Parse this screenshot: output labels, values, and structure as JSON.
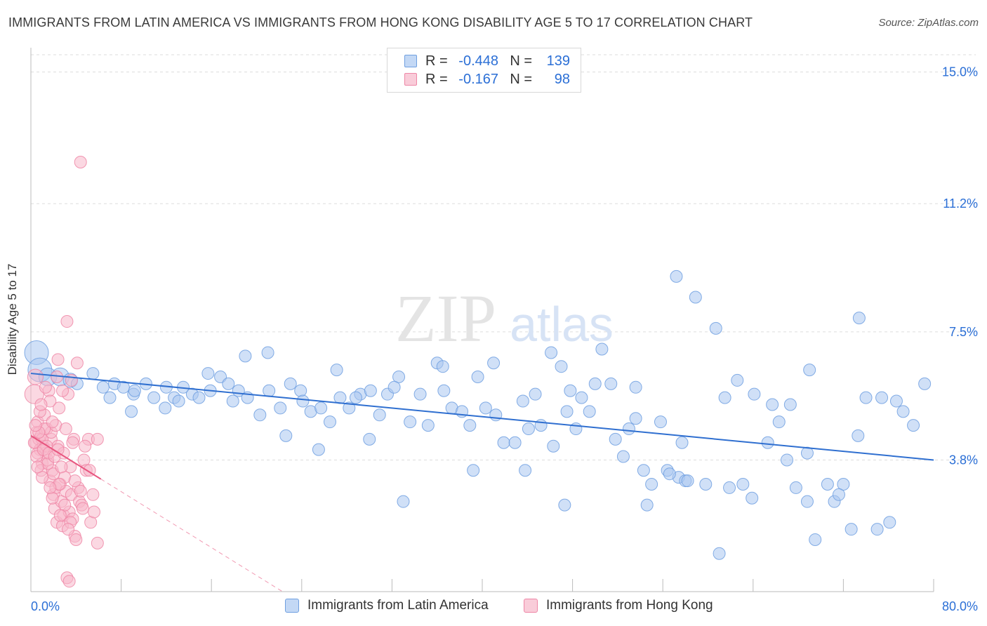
{
  "header": {
    "title": "IMMIGRANTS FROM LATIN AMERICA VS IMMIGRANTS FROM HONG KONG DISABILITY AGE 5 TO 17 CORRELATION CHART",
    "source": "Source: ZipAtlas.com"
  },
  "legend": {
    "rows": [
      {
        "r_label": "R =",
        "r_value": "-0.448",
        "n_label": "N =",
        "n_value": "139"
      },
      {
        "r_label": "R =",
        "r_value": "-0.167",
        "n_label": "N =",
        "n_value": "98"
      }
    ]
  },
  "watermark": {
    "zip": "ZIP",
    "atlas": "atlas"
  },
  "colors": {
    "blue_fill": "#a9c6f0",
    "blue_stroke": "#6f9fe0",
    "blue_line": "#2f6fd0",
    "pink_fill": "#f7b8ca",
    "pink_stroke": "#ee86a6",
    "pink_line": "#e8557f",
    "tick_label": "#2b6fd6",
    "grid": "#dddddd"
  },
  "chart_data": {
    "type": "scatter",
    "title": "IMMIGRANTS FROM LATIN AMERICA VS IMMIGRANTS FROM HONG KONG DISABILITY AGE 5 TO 17 CORRELATION CHART",
    "xlabel": "",
    "ylabel": "Disability Age 5 to 17",
    "xlim": [
      0,
      80
    ],
    "ylim": [
      0,
      15.5
    ],
    "x_tick_labels": [
      "0.0%",
      "80.0%"
    ],
    "y_ticks": [
      3.8,
      7.5,
      11.2,
      15.0
    ],
    "y_tick_labels": [
      "3.8%",
      "7.5%",
      "11.2%",
      "15.0%"
    ],
    "grid": true,
    "legend_position": "top-center",
    "series": [
      {
        "name": "Immigrants from Latin America",
        "r": -0.448,
        "n": 139,
        "trend": {
          "x": [
            0,
            80
          ],
          "y": [
            6.3,
            3.8
          ]
        },
        "points": [
          [
            0.5,
            6.9,
            2
          ],
          [
            0.8,
            6.4,
            2
          ],
          [
            1.5,
            6.2,
            1.5
          ],
          [
            2.6,
            6.2,
            1.5
          ],
          [
            3.5,
            6.1,
            1.2
          ],
          [
            4.1,
            6.0,
            1
          ],
          [
            5.5,
            6.3,
            1
          ],
          [
            6.4,
            5.9,
            1
          ],
          [
            7.4,
            6.0,
            1
          ],
          [
            8.2,
            5.9,
            1
          ],
          [
            9.1,
            5.7,
            1
          ],
          [
            10.2,
            6.0,
            1
          ],
          [
            10.9,
            5.6,
            1
          ],
          [
            12.0,
            5.9,
            1
          ],
          [
            12.7,
            5.6,
            1
          ],
          [
            13.5,
            5.9,
            1
          ],
          [
            14.3,
            5.7,
            1
          ],
          [
            14.9,
            5.6,
            1
          ],
          [
            15.9,
            5.8,
            1
          ],
          [
            16.8,
            6.2,
            1
          ],
          [
            17.5,
            6.0,
            1
          ],
          [
            18.4,
            5.8,
            1
          ],
          [
            19.2,
            5.6,
            1
          ],
          [
            20.3,
            5.1,
            1
          ],
          [
            21.1,
            5.8,
            1
          ],
          [
            22.1,
            5.3,
            1
          ],
          [
            23.0,
            6.0,
            1
          ],
          [
            23.9,
            5.8,
            1
          ],
          [
            24.8,
            5.2,
            1
          ],
          [
            25.7,
            5.3,
            1
          ],
          [
            26.5,
            4.9,
            1
          ],
          [
            27.4,
            5.6,
            1
          ],
          [
            28.2,
            5.3,
            1
          ],
          [
            29.2,
            5.7,
            1
          ],
          [
            30.1,
            5.8,
            1
          ],
          [
            30.9,
            5.1,
            1
          ],
          [
            31.6,
            5.7,
            1
          ],
          [
            32.6,
            6.2,
            1
          ],
          [
            33.6,
            4.9,
            1
          ],
          [
            34.5,
            5.7,
            1
          ],
          [
            35.2,
            4.8,
            1
          ],
          [
            36.0,
            6.6,
            1
          ],
          [
            36.6,
            5.8,
            1
          ],
          [
            37.3,
            5.3,
            1
          ],
          [
            38.2,
            5.2,
            1
          ],
          [
            38.9,
            4.8,
            1
          ],
          [
            39.6,
            6.2,
            1
          ],
          [
            40.3,
            5.3,
            1
          ],
          [
            41.2,
            5.1,
            1
          ],
          [
            41.9,
            4.3,
            1
          ],
          [
            42.9,
            4.3,
            1
          ],
          [
            43.6,
            5.5,
            1
          ],
          [
            44.1,
            4.7,
            1
          ],
          [
            44.7,
            5.7,
            1
          ],
          [
            45.2,
            4.8,
            1
          ],
          [
            46.3,
            4.2,
            1
          ],
          [
            47.0,
            6.5,
            1
          ],
          [
            47.5,
            5.2,
            1
          ],
          [
            48.3,
            4.7,
            1
          ],
          [
            48.8,
            5.6,
            1
          ],
          [
            49.5,
            5.2,
            1
          ],
          [
            50.0,
            6.0,
            1
          ],
          [
            50.6,
            7.0,
            1
          ],
          [
            51.4,
            6.0,
            1
          ],
          [
            51.8,
            4.4,
            1
          ],
          [
            52.5,
            3.9,
            1
          ],
          [
            53.0,
            4.7,
            1
          ],
          [
            53.6,
            5.0,
            1
          ],
          [
            54.3,
            3.5,
            1
          ],
          [
            55.0,
            3.1,
            1
          ],
          [
            55.8,
            4.9,
            1
          ],
          [
            56.4,
            3.5,
            1
          ],
          [
            57.2,
            9.1,
            1
          ],
          [
            57.4,
            3.3,
            1
          ],
          [
            58.0,
            3.2,
            1
          ],
          [
            58.2,
            3.2,
            1
          ],
          [
            58.9,
            8.5,
            1
          ],
          [
            59.8,
            3.1,
            1
          ],
          [
            60.7,
            7.6,
            1
          ],
          [
            61.5,
            5.6,
            1
          ],
          [
            61.9,
            3.0,
            1
          ],
          [
            62.6,
            6.1,
            1
          ],
          [
            63.1,
            3.1,
            1
          ],
          [
            64.1,
            5.7,
            1
          ],
          [
            65.3,
            4.3,
            1
          ],
          [
            65.7,
            5.4,
            1
          ],
          [
            66.3,
            4.9,
            1
          ],
          [
            67.3,
            5.4,
            1
          ],
          [
            67.8,
            3.0,
            1
          ],
          [
            68.8,
            4.0,
            1
          ],
          [
            68.8,
            2.6,
            1
          ],
          [
            69.5,
            1.5,
            1
          ],
          [
            70.6,
            3.1,
            1
          ],
          [
            71.2,
            2.6,
            1
          ],
          [
            72.0,
            3.1,
            1
          ],
          [
            72.7,
            1.8,
            1
          ],
          [
            73.3,
            4.5,
            1
          ],
          [
            73.4,
            7.9,
            1
          ],
          [
            74.0,
            5.6,
            1
          ],
          [
            75.0,
            1.8,
            1
          ],
          [
            75.4,
            5.6,
            1
          ],
          [
            76.1,
            2.0,
            1
          ],
          [
            76.7,
            5.5,
            1
          ],
          [
            77.3,
            5.2,
            1
          ],
          [
            78.2,
            4.8,
            1
          ],
          [
            79.2,
            6.0,
            1
          ],
          [
            33.0,
            2.6,
            1
          ],
          [
            39.2,
            3.5,
            1
          ],
          [
            47.8,
            5.8,
            1
          ],
          [
            54.6,
            2.5,
            1
          ],
          [
            61.0,
            1.1,
            1
          ],
          [
            47.3,
            2.5,
            1
          ],
          [
            43.8,
            3.5,
            1
          ],
          [
            56.6,
            3.4,
            1
          ],
          [
            28.8,
            5.6,
            1
          ],
          [
            57.7,
            4.3,
            1
          ],
          [
            63.9,
            2.7,
            1
          ],
          [
            67.0,
            3.8,
            1
          ],
          [
            69.0,
            6.4,
            1
          ],
          [
            71.6,
            2.8,
            1
          ],
          [
            27.1,
            6.4,
            1
          ],
          [
            19.0,
            6.8,
            1
          ],
          [
            15.7,
            6.3,
            1
          ],
          [
            11.9,
            5.3,
            1
          ],
          [
            9.2,
            5.8,
            1
          ],
          [
            7.0,
            5.6,
            1
          ],
          [
            53.6,
            5.9,
            1
          ],
          [
            46.1,
            6.9,
            1
          ],
          [
            41.0,
            6.6,
            1
          ],
          [
            36.5,
            6.5,
            1
          ],
          [
            32.2,
            5.9,
            1
          ],
          [
            30.0,
            4.4,
            1
          ],
          [
            25.5,
            4.1,
            1
          ],
          [
            24.1,
            5.5,
            1
          ],
          [
            22.6,
            4.5,
            1
          ],
          [
            21.0,
            6.9,
            1
          ],
          [
            17.9,
            5.5,
            1
          ],
          [
            13.1,
            5.5,
            1
          ],
          [
            8.9,
            5.2,
            1
          ]
        ]
      },
      {
        "name": "Immigrants from Hong Kong",
        "r": -0.167,
        "n": 98,
        "trend": {
          "x": [
            0,
            6.2
          ],
          "y": [
            4.5,
            3.25
          ]
        },
        "trend_extension": {
          "x": [
            6.2,
            22.3
          ],
          "y": [
            3.25,
            0
          ]
        },
        "points": [
          [
            0.3,
            5.7,
            1.6
          ],
          [
            0.4,
            6.2,
            1.3
          ],
          [
            0.4,
            4.3,
            1
          ],
          [
            0.5,
            4.6,
            1
          ],
          [
            0.6,
            4.9,
            1
          ],
          [
            0.7,
            4.4,
            1
          ],
          [
            0.8,
            4.1,
            1
          ],
          [
            0.9,
            4.5,
            1
          ],
          [
            1.0,
            3.7,
            1
          ],
          [
            1.1,
            4.2,
            1
          ],
          [
            1.2,
            5.1,
            1
          ],
          [
            1.3,
            4.0,
            1
          ],
          [
            1.4,
            4.7,
            1
          ],
          [
            1.5,
            3.8,
            1
          ],
          [
            1.6,
            5.8,
            1
          ],
          [
            1.7,
            3.2,
            1
          ],
          [
            1.8,
            4.4,
            1
          ],
          [
            1.9,
            3.5,
            1
          ],
          [
            2.0,
            2.8,
            1
          ],
          [
            2.1,
            2.4,
            1
          ],
          [
            2.2,
            3.0,
            1
          ],
          [
            2.3,
            2.0,
            1
          ],
          [
            2.4,
            6.7,
            1
          ],
          [
            2.5,
            5.3,
            1
          ],
          [
            2.6,
            3.1,
            1
          ],
          [
            2.7,
            2.6,
            1
          ],
          [
            2.8,
            1.9,
            1
          ],
          [
            2.9,
            2.2,
            1
          ],
          [
            3.0,
            3.3,
            1
          ],
          [
            3.1,
            2.9,
            1
          ],
          [
            3.2,
            7.8,
            1
          ],
          [
            3.3,
            5.7,
            1
          ],
          [
            3.4,
            2.3,
            1
          ],
          [
            3.5,
            3.6,
            1
          ],
          [
            3.6,
            2.8,
            1
          ],
          [
            3.7,
            2.1,
            1
          ],
          [
            3.8,
            4.4,
            1
          ],
          [
            3.9,
            1.6,
            1
          ],
          [
            4.1,
            6.6,
            1
          ],
          [
            4.2,
            3.0,
            1
          ],
          [
            4.3,
            2.6,
            1
          ],
          [
            4.5,
            2.5,
            1
          ],
          [
            4.7,
            3.8,
            1
          ],
          [
            4.9,
            3.5,
            1
          ],
          [
            5.1,
            4.4,
            1
          ],
          [
            5.3,
            2.0,
            1
          ],
          [
            5.5,
            2.8,
            1
          ],
          [
            5.6,
            2.3,
            1
          ],
          [
            5.9,
            4.4,
            1
          ],
          [
            5.9,
            1.4,
            1
          ],
          [
            4.4,
            12.4,
            1
          ],
          [
            0.6,
            4.0,
            1
          ],
          [
            1.0,
            4.4,
            1
          ],
          [
            1.4,
            4.2,
            1
          ],
          [
            1.8,
            4.6,
            1
          ],
          [
            2.2,
            4.8,
            1
          ],
          [
            0.9,
            3.5,
            1
          ],
          [
            1.5,
            3.7,
            1
          ],
          [
            2.0,
            3.4,
            1
          ],
          [
            2.5,
            3.1,
            1
          ],
          [
            3.0,
            2.5,
            1
          ],
          [
            3.5,
            2.0,
            1
          ],
          [
            4.0,
            1.5,
            1
          ],
          [
            3.2,
            0.4,
            1
          ],
          [
            3.4,
            0.3,
            1
          ],
          [
            1.2,
            4.7,
            1
          ],
          [
            0.8,
            5.2,
            1
          ],
          [
            1.7,
            5.5,
            1
          ],
          [
            2.8,
            5.8,
            1
          ],
          [
            3.6,
            6.1,
            1
          ],
          [
            0.5,
            3.9,
            1
          ],
          [
            1.0,
            3.3,
            1
          ],
          [
            1.9,
            2.7,
            1
          ],
          [
            2.6,
            2.2,
            1
          ],
          [
            3.3,
            1.8,
            1
          ],
          [
            4.6,
            2.4,
            1
          ],
          [
            0.3,
            4.3,
            1
          ],
          [
            0.7,
            4.6,
            1
          ],
          [
            1.1,
            4.1,
            1
          ],
          [
            1.6,
            4.0,
            1
          ],
          [
            2.1,
            3.9,
            1
          ],
          [
            2.4,
            4.2,
            1
          ],
          [
            2.9,
            4.0,
            1
          ],
          [
            3.7,
            4.3,
            1
          ],
          [
            4.8,
            4.2,
            1
          ],
          [
            5.2,
            3.5,
            1
          ],
          [
            0.4,
            4.8,
            1
          ],
          [
            0.9,
            5.4,
            1
          ],
          [
            1.3,
            5.9,
            1
          ],
          [
            2.3,
            6.2,
            1
          ],
          [
            3.9,
            3.2,
            1
          ],
          [
            4.4,
            2.9,
            1
          ],
          [
            1.7,
            3.0,
            1
          ],
          [
            2.7,
            3.6,
            1
          ],
          [
            3.1,
            4.7,
            1
          ],
          [
            0.6,
            3.6,
            1
          ],
          [
            1.9,
            4.9,
            1
          ],
          [
            2.4,
            4.1,
            1
          ]
        ]
      }
    ]
  }
}
